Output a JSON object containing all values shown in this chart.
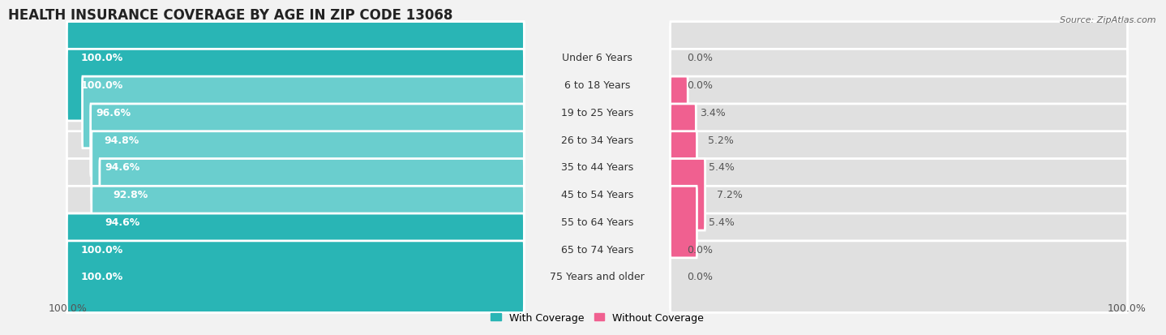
{
  "title": "HEALTH INSURANCE COVERAGE BY AGE IN ZIP CODE 13068",
  "source": "Source: ZipAtlas.com",
  "categories": [
    "Under 6 Years",
    "6 to 18 Years",
    "19 to 25 Years",
    "26 to 34 Years",
    "35 to 44 Years",
    "45 to 54 Years",
    "55 to 64 Years",
    "65 to 74 Years",
    "75 Years and older"
  ],
  "with_coverage": [
    100.0,
    100.0,
    96.6,
    94.8,
    94.6,
    92.8,
    94.6,
    100.0,
    100.0
  ],
  "without_coverage": [
    0.0,
    0.0,
    3.4,
    5.2,
    5.4,
    7.2,
    5.4,
    0.0,
    0.0
  ],
  "color_with": "#29b5b5",
  "color_without": "#f06090",
  "color_with_light": "#6acece",
  "color_without_light": "#f9b8cc",
  "bg_color": "#f2f2f2",
  "bar_bg_color": "#e0e0e0",
  "title_fontsize": 12,
  "label_fontsize": 9,
  "cat_fontsize": 9,
  "axis_label_fontsize": 9,
  "legend_fontsize": 9
}
